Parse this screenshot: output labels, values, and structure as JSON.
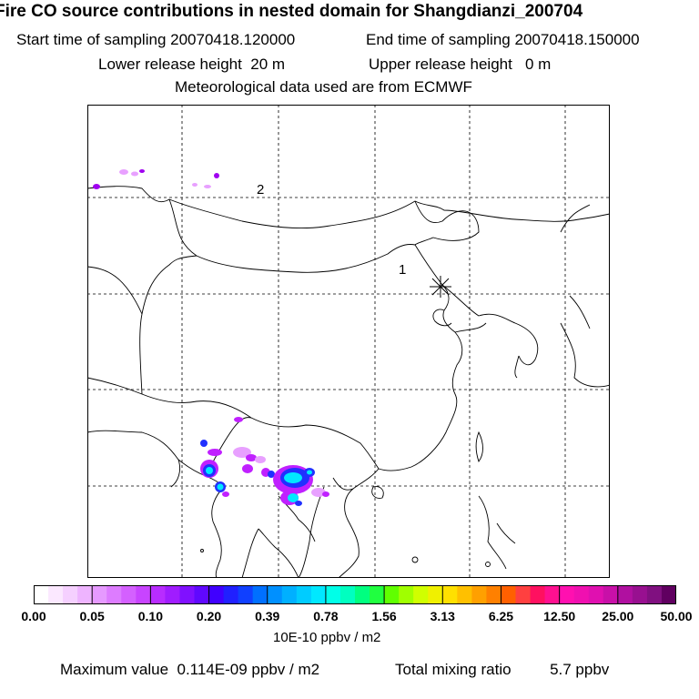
{
  "header": {
    "title": "Fire CO source contributions in nested domain for Shangdianzi_200704",
    "start_label": "Start time of sampling",
    "start_value": "20070418.120000",
    "end_label": "End time of sampling",
    "end_value": "20070418.150000",
    "lower_label": "Lower release height",
    "lower_value": "20 m",
    "upper_label": "Upper release height",
    "upper_value": "0 m",
    "met_line": "Meteorological data used are from ECMWF"
  },
  "map": {
    "labels": {
      "point1": "1",
      "point2": "2"
    },
    "receptor_icon": "asterisk-icon",
    "colors": {
      "purple": "#a000f0",
      "magenta": "#c020ff",
      "blue": "#2030ff",
      "cyan": "#00e8ff",
      "light": "#e8a0ff"
    }
  },
  "colorbar": {
    "colors": [
      "#ffffff",
      "#fbe8ff",
      "#f5d0ff",
      "#eeb4ff",
      "#e69aff",
      "#dd7cff",
      "#d460ff",
      "#c844ff",
      "#b82cff",
      "#a01cff",
      "#8010ff",
      "#6008ff",
      "#4000ff",
      "#2020ff",
      "#1040ff",
      "#0070ff",
      "#0090ff",
      "#00b0ff",
      "#00ccff",
      "#00e8ff",
      "#00ffe8",
      "#00ffc0",
      "#00ff80",
      "#20ff40",
      "#60ff00",
      "#a0ff00",
      "#d0ff00",
      "#f0f000",
      "#ffe000",
      "#ffc000",
      "#ffa000",
      "#ff8000",
      "#ff6000",
      "#ff4040",
      "#ff1060",
      "#ff1090",
      "#ff10b0",
      "#f010b0",
      "#e010b0",
      "#c810a8",
      "#b010a0",
      "#981090",
      "#801080",
      "#600060"
    ],
    "tick_labels": [
      "0.00",
      "0.05",
      "0.10",
      "0.20",
      "0.39",
      "0.78",
      "1.56",
      "3.13",
      "6.25",
      "12.50",
      "25.00",
      "50.00"
    ],
    "units": "10E-10 ppbv / m2"
  },
  "footer": {
    "max_label": "Maximum value",
    "max_value": "0.114E-09 ppbv / m2",
    "total_label": "Total mixing ratio",
    "total_value": "5.7 ppbv"
  }
}
